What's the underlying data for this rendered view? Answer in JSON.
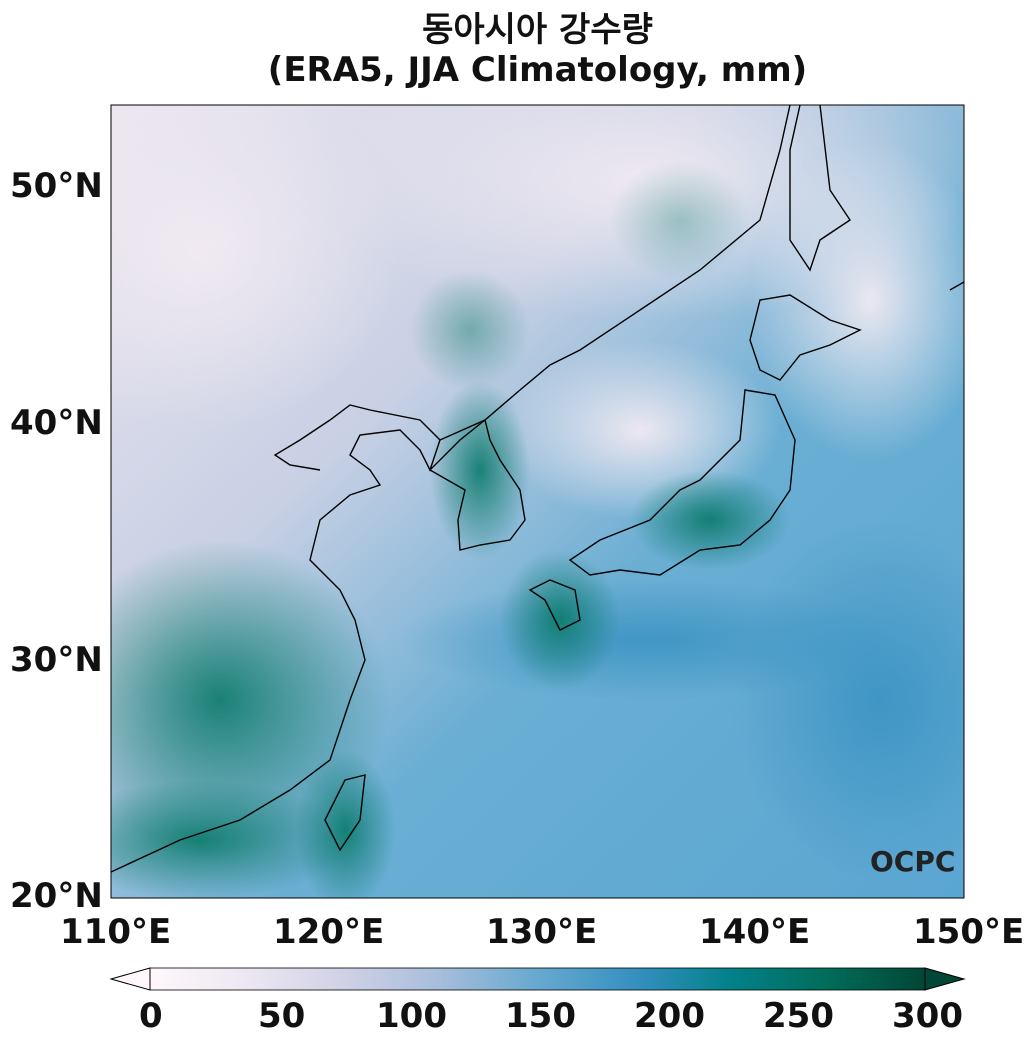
{
  "title": {
    "line1": "동아시아 강수량",
    "line2": "(ERA5, JJA Climatology, mm)"
  },
  "map": {
    "lat_ticks": [
      "20°N",
      "30°N",
      "40°N",
      "50°N"
    ],
    "lon_ticks": [
      "110°E",
      "120°E",
      "130°E",
      "140°E",
      "150°E"
    ],
    "extent": {
      "lon": [
        110,
        150
      ],
      "lat": [
        20,
        53.4
      ]
    },
    "logo": "OCPC"
  },
  "colorbar": {
    "ticks": [
      "0",
      "50",
      "100",
      "150",
      "200",
      "250",
      "300"
    ],
    "range": [
      0,
      300
    ],
    "extend": "both",
    "colors": [
      "#fff7fb",
      "#ece7f2",
      "#d0d1e6",
      "#a6bddb",
      "#67a9cf",
      "#3690c0",
      "#02818a",
      "#016c59",
      "#014636"
    ]
  }
}
